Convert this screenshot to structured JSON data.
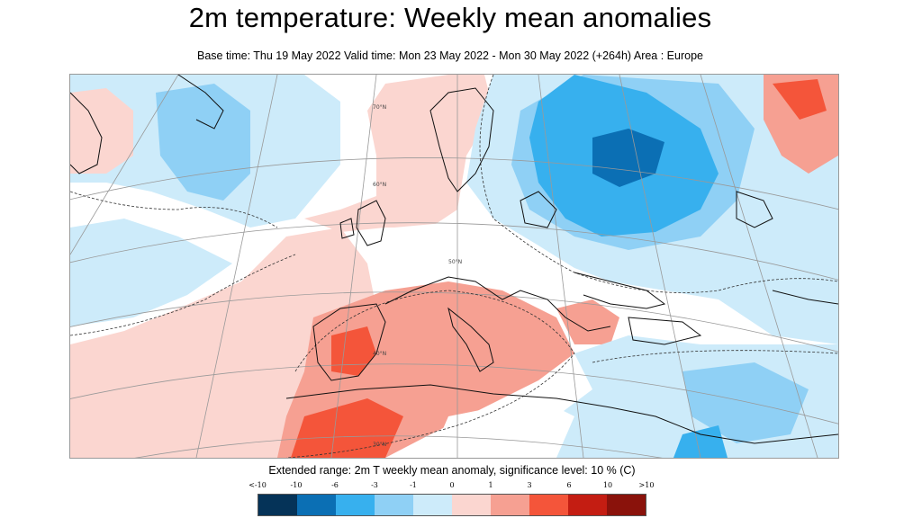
{
  "title": "2m temperature: Weekly mean anomalies",
  "subtitle": "Base time: Thu 19 May 2022 Valid time: Mon 23 May 2022 - Mon 30 May 2022 (+264h) Area : Europe",
  "caption": "Extended range: 2m T weekly mean anomaly, significance level: 10 % (C)",
  "map": {
    "area": "Europe",
    "graticule_labels": [
      "70°N",
      "60°N",
      "50°N",
      "40°N",
      "30°N"
    ]
  },
  "legend": {
    "ticks": [
      "<-10",
      "-10",
      "-6",
      "-3",
      "-1",
      "0",
      "1",
      "3",
      "6",
      "10",
      ">10"
    ],
    "colors": [
      "#053358",
      "#0b6fb4",
      "#37b0ee",
      "#8fd0f5",
      "#cdebfa",
      "#fbd6d0",
      "#f6a092",
      "#f4553a",
      "#c41d12",
      "#8a120b",
      "#4d0b06"
    ]
  }
}
